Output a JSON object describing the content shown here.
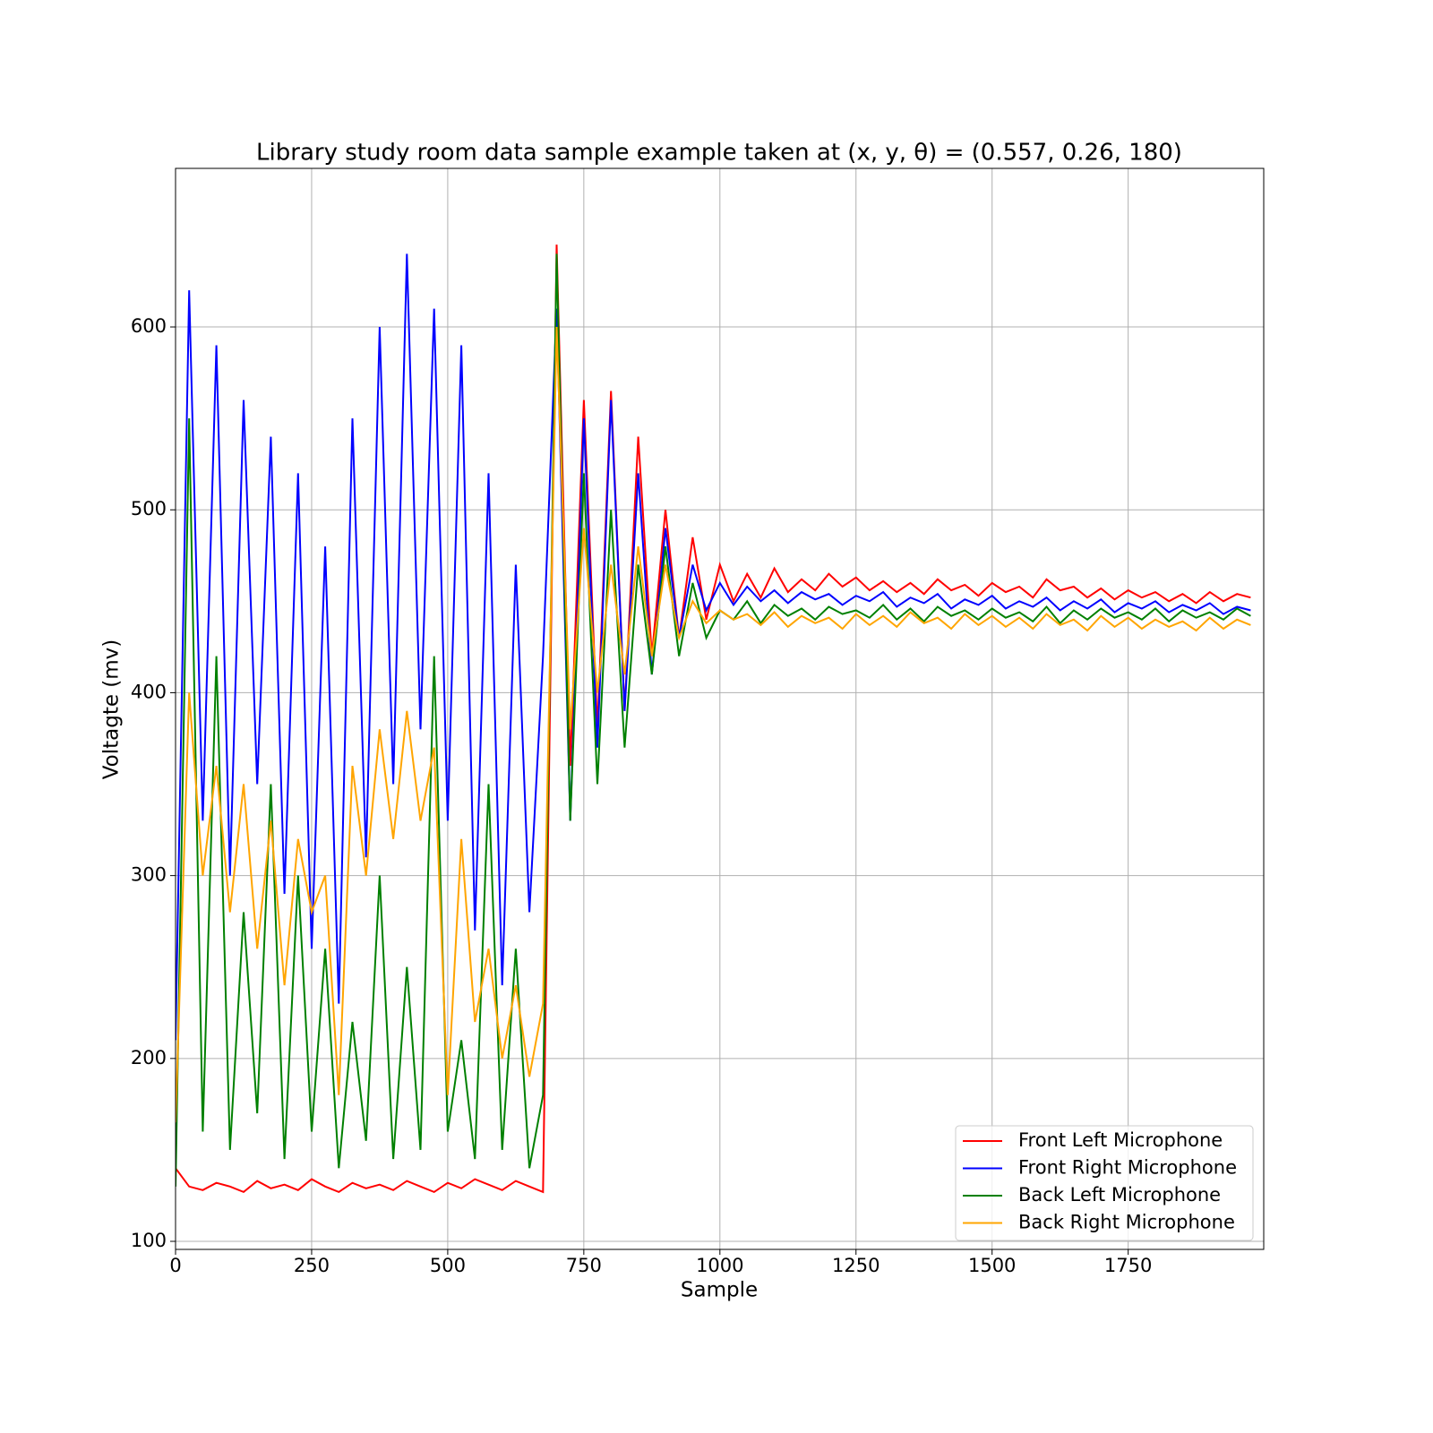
{
  "chart_data": {
    "type": "line",
    "title": "Library study room data sample example taken at (x, y, θ) = (0.557, 0.26, 180)",
    "x_label": "Sample",
    "y_label": "Voltagte (mv)",
    "x": [
      0,
      25,
      50,
      75,
      100,
      125,
      150,
      175,
      200,
      225,
      250,
      275,
      300,
      325,
      350,
      375,
      400,
      425,
      450,
      475,
      500,
      525,
      550,
      575,
      600,
      625,
      650,
      675,
      700,
      725,
      750,
      775,
      800,
      825,
      850,
      875,
      900,
      925,
      950,
      975,
      1000,
      1025,
      1050,
      1075,
      1100,
      1125,
      1150,
      1175,
      1200,
      1225,
      1250,
      1275,
      1300,
      1325,
      1350,
      1375,
      1400,
      1425,
      1450,
      1475,
      1500,
      1525,
      1550,
      1575,
      1600,
      1625,
      1650,
      1675,
      1700,
      1725,
      1750,
      1775,
      1800,
      1825,
      1850,
      1875,
      1900,
      1925,
      1950,
      1975
    ],
    "series": [
      {
        "name": "Front Left Microphone",
        "color": "#ff0000",
        "values": [
          140,
          130,
          128,
          132,
          130,
          127,
          133,
          129,
          131,
          128,
          134,
          130,
          127,
          132,
          129,
          131,
          128,
          133,
          130,
          127,
          132,
          129,
          134,
          131,
          128,
          133,
          130,
          127,
          645,
          360,
          560,
          380,
          565,
          390,
          540,
          420,
          500,
          430,
          485,
          440,
          470,
          450,
          465,
          452,
          468,
          455,
          462,
          456,
          465,
          458,
          463,
          456,
          461,
          455,
          460,
          454,
          462,
          456,
          459,
          453,
          460,
          455,
          458,
          452,
          462,
          456,
          458,
          452,
          457,
          451,
          456,
          452,
          455,
          450,
          454,
          449,
          455,
          450,
          454,
          452
        ]
      },
      {
        "name": "Front Right Microphone",
        "color": "#0000ff",
        "values": [
          210,
          620,
          330,
          590,
          300,
          560,
          350,
          540,
          290,
          520,
          260,
          480,
          230,
          550,
          310,
          600,
          350,
          640,
          380,
          610,
          330,
          590,
          270,
          520,
          240,
          470,
          280,
          420,
          610,
          330,
          550,
          370,
          560,
          390,
          520,
          410,
          490,
          430,
          470,
          445,
          460,
          448,
          458,
          450,
          456,
          449,
          455,
          451,
          454,
          448,
          453,
          450,
          455,
          447,
          452,
          449,
          454,
          446,
          451,
          448,
          453,
          446,
          450,
          447,
          452,
          445,
          450,
          446,
          451,
          444,
          449,
          446,
          450,
          444,
          448,
          445,
          449,
          443,
          447,
          445
        ]
      },
      {
        "name": "Back Left Microphone",
        "color": "#008000",
        "values": [
          130,
          550,
          160,
          420,
          150,
          280,
          170,
          350,
          145,
          300,
          160,
          260,
          140,
          220,
          155,
          300,
          145,
          250,
          150,
          420,
          160,
          210,
          145,
          350,
          150,
          260,
          140,
          180,
          640,
          330,
          520,
          350,
          500,
          370,
          470,
          410,
          480,
          420,
          460,
          430,
          445,
          440,
          450,
          438,
          448,
          442,
          446,
          440,
          447,
          443,
          445,
          441,
          448,
          440,
          446,
          439,
          447,
          442,
          445,
          440,
          446,
          441,
          444,
          439,
          447,
          438,
          445,
          440,
          446,
          441,
          444,
          440,
          446,
          439,
          445,
          441,
          444,
          440,
          446,
          442
        ]
      },
      {
        "name": "Back Right Microphone",
        "color": "#ffa500",
        "values": [
          165,
          400,
          300,
          360,
          280,
          350,
          260,
          330,
          240,
          320,
          280,
          300,
          180,
          360,
          300,
          380,
          320,
          390,
          330,
          370,
          180,
          320,
          220,
          260,
          200,
          240,
          190,
          230,
          600,
          380,
          490,
          400,
          470,
          410,
          480,
          420,
          470,
          430,
          450,
          438,
          445,
          440,
          443,
          437,
          444,
          436,
          442,
          438,
          441,
          435,
          443,
          437,
          442,
          436,
          444,
          438,
          441,
          435,
          443,
          437,
          442,
          436,
          441,
          435,
          443,
          437,
          440,
          434,
          442,
          436,
          441,
          435,
          440,
          436,
          439,
          434,
          441,
          435,
          440,
          437
        ]
      }
    ],
    "xlim": [
      0,
      1999
    ],
    "ylim": [
      95.6,
      686.7
    ],
    "xticks": [
      0,
      250,
      500,
      750,
      1000,
      1250,
      1500,
      1750
    ],
    "yticks": [
      100,
      200,
      300,
      400,
      500,
      600
    ],
    "grid": true,
    "legend": "lower right"
  }
}
